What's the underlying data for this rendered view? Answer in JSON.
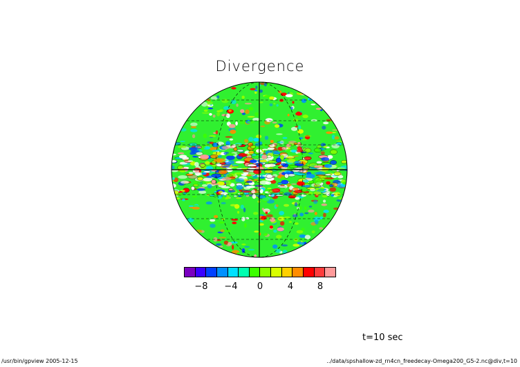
{
  "title": "Divergence",
  "colorbar": {
    "ticks": [
      "−8",
      "−4",
      "0",
      "4",
      "8"
    ],
    "colors": [
      "#7a00c0",
      "#3a00ff",
      "#0040ff",
      "#0090ff",
      "#00e0ff",
      "#00ffb0",
      "#3cff00",
      "#8cff00",
      "#d8ff00",
      "#ffd000",
      "#ff8c00",
      "#ff0000",
      "#ff3c3c",
      "#ff9a9a"
    ]
  },
  "time_label": "t=10 sec",
  "footer": {
    "left": "/usr/bin/gpview   2005-12-15",
    "right": "../data/spshallow-zd_rn4cn_freedecay-Omega200_G5-2.nc@div,t=10"
  }
}
